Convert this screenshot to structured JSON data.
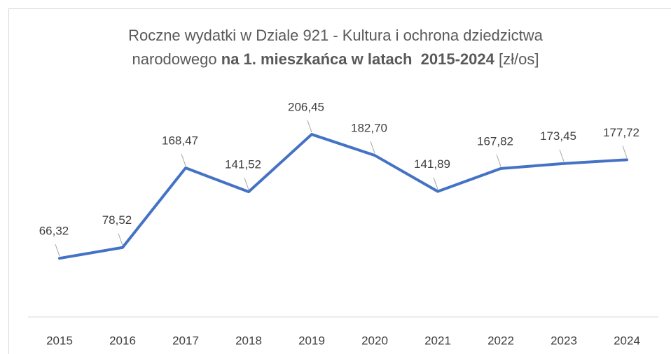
{
  "chart_data": {
    "type": "line",
    "title": [
      "Roczne wydatki w Dziale 921 - Kultura i ochrona dziedzictwa",
      "narodowego",
      "na 1. mieszkańca w latach  2015-2024",
      "[zł/os]"
    ],
    "categories": [
      "2015",
      "2016",
      "2017",
      "2018",
      "2019",
      "2020",
      "2021",
      "2022",
      "2023",
      "2024"
    ],
    "values": [
      66.32,
      78.52,
      168.47,
      141.52,
      206.45,
      182.7,
      141.89,
      167.82,
      173.45,
      177.72
    ],
    "value_labels": [
      "66,32",
      "78,52",
      "168,47",
      "141,52",
      "206,45",
      "182,70",
      "141,89",
      "167,82",
      "173,45",
      "177,72"
    ],
    "color": "#4472c4",
    "ylim": [
      0,
      250
    ]
  }
}
